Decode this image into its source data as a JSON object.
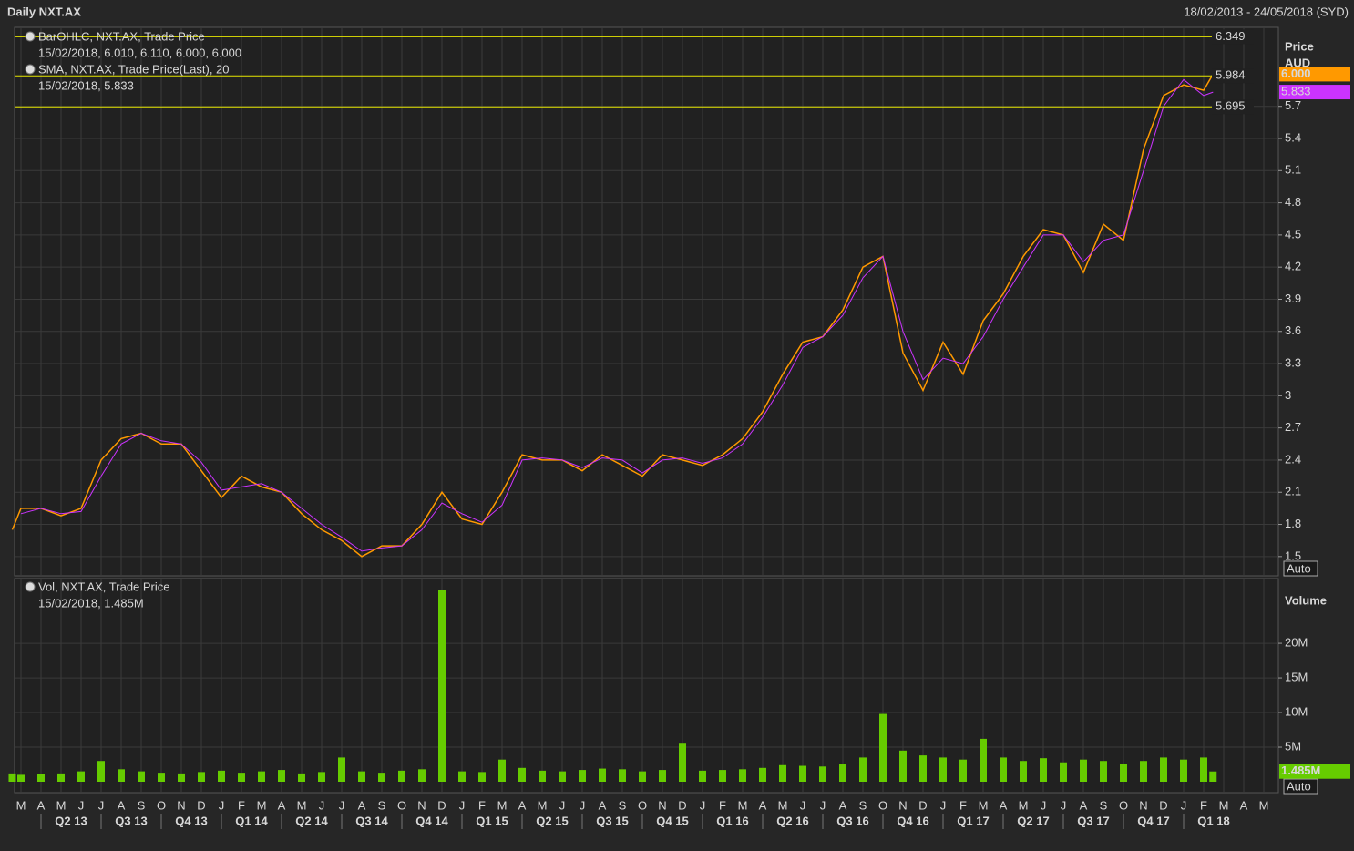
{
  "header": {
    "title": "Daily NXT.AX",
    "range": "18/02/2013 - 24/05/2018 (SYD)"
  },
  "chart_data": [
    {
      "type": "line",
      "axis_title": "Price",
      "axis_unit": "AUD",
      "scale_mode": "Auto",
      "x": [
        "18/02/2013",
        "01/03/2013",
        "01/04/2013",
        "01/05/2013",
        "01/06/2013",
        "01/07/2013",
        "01/08/2013",
        "01/09/2013",
        "01/10/2013",
        "01/11/2013",
        "01/12/2013",
        "01/01/2014",
        "01/02/2014",
        "01/03/2014",
        "01/04/2014",
        "01/05/2014",
        "01/06/2014",
        "01/07/2014",
        "01/08/2014",
        "01/09/2014",
        "01/10/2014",
        "01/11/2014",
        "01/12/2014",
        "01/01/2015",
        "01/02/2015",
        "01/03/2015",
        "01/04/2015",
        "01/05/2015",
        "01/06/2015",
        "01/07/2015",
        "01/08/2015",
        "01/09/2015",
        "01/10/2015",
        "01/11/2015",
        "01/12/2015",
        "01/01/2016",
        "01/02/2016",
        "01/03/2016",
        "01/04/2016",
        "01/05/2016",
        "01/06/2016",
        "01/07/2016",
        "01/08/2016",
        "01/09/2016",
        "01/10/2016",
        "01/11/2016",
        "01/12/2016",
        "01/01/2017",
        "01/02/2017",
        "01/03/2017",
        "01/04/2017",
        "01/05/2017",
        "01/06/2017",
        "01/07/2017",
        "01/08/2017",
        "01/09/2017",
        "01/10/2017",
        "01/11/2017",
        "01/12/2017",
        "01/01/2018",
        "01/02/2018",
        "15/02/2018"
      ],
      "series": [
        {
          "name": "BarOHLC, NXT.AX, Trade Price",
          "detail": "15/02/2018, 6.010, 6.110, 6.000, 6.000",
          "color": "#ff9900",
          "last": {
            "value": 6.0,
            "label": "6.000"
          },
          "values": [
            1.75,
            1.95,
            1.95,
            1.88,
            1.95,
            2.4,
            2.6,
            2.65,
            2.55,
            2.55,
            2.3,
            2.05,
            2.25,
            2.15,
            2.1,
            1.9,
            1.75,
            1.65,
            1.5,
            1.6,
            1.6,
            1.8,
            2.1,
            1.85,
            1.8,
            2.1,
            2.45,
            2.4,
            2.4,
            2.3,
            2.45,
            2.35,
            2.25,
            2.45,
            2.4,
            2.35,
            2.45,
            2.6,
            2.85,
            3.2,
            3.5,
            3.55,
            3.8,
            4.2,
            4.3,
            3.4,
            3.05,
            3.5,
            3.2,
            3.7,
            3.95,
            4.3,
            4.55,
            4.5,
            4.15,
            4.6,
            4.45,
            5.3,
            5.8,
            5.9,
            5.85,
            6.0
          ]
        },
        {
          "name": "SMA, NXT.AX, Trade Price(Last),  20",
          "detail": "15/02/2018, 5.833",
          "color": "#cc33ff",
          "last": 5.833,
          "values": [
            null,
            1.9,
            1.95,
            1.9,
            1.92,
            2.25,
            2.55,
            2.65,
            2.58,
            2.55,
            2.38,
            2.12,
            2.15,
            2.18,
            2.1,
            1.95,
            1.8,
            1.68,
            1.55,
            1.58,
            1.6,
            1.75,
            2.0,
            1.9,
            1.82,
            1.98,
            2.4,
            2.42,
            2.4,
            2.33,
            2.42,
            2.4,
            2.28,
            2.4,
            2.42,
            2.37,
            2.42,
            2.55,
            2.8,
            3.1,
            3.45,
            3.55,
            3.75,
            4.1,
            4.3,
            3.6,
            3.15,
            3.35,
            3.3,
            3.55,
            3.9,
            4.2,
            4.5,
            4.5,
            4.25,
            4.45,
            4.5,
            5.1,
            5.7,
            5.95,
            5.8,
            5.833
          ]
        }
      ],
      "reference_lines": [
        6.349,
        5.984,
        5.695
      ],
      "reference_color": "#e6e600",
      "ylim": [
        1.32,
        6.42
      ],
      "yticks": [
        1.5,
        1.8,
        2.1,
        2.4,
        2.7,
        3,
        3.3,
        3.6,
        3.9,
        4.2,
        4.5,
        4.8,
        5.1,
        5.4,
        5.7
      ],
      "grid": true
    },
    {
      "type": "bar",
      "axis_title": "Volume",
      "scale_mode": "Auto",
      "x": [
        "18/02/2013",
        "01/03/2013",
        "01/04/2013",
        "01/05/2013",
        "01/06/2013",
        "01/07/2013",
        "01/08/2013",
        "01/09/2013",
        "01/10/2013",
        "01/11/2013",
        "01/12/2013",
        "01/01/2014",
        "01/02/2014",
        "01/03/2014",
        "01/04/2014",
        "01/05/2014",
        "01/06/2014",
        "01/07/2014",
        "01/08/2014",
        "01/09/2014",
        "01/10/2014",
        "01/11/2014",
        "01/12/2014",
        "01/01/2015",
        "01/02/2015",
        "01/03/2015",
        "01/04/2015",
        "01/05/2015",
        "01/06/2015",
        "01/07/2015",
        "01/08/2015",
        "01/09/2015",
        "01/10/2015",
        "01/11/2015",
        "01/12/2015",
        "01/01/2016",
        "01/02/2016",
        "01/03/2016",
        "01/04/2016",
        "01/05/2016",
        "01/06/2016",
        "01/07/2016",
        "01/08/2016",
        "01/09/2016",
        "01/10/2016",
        "01/11/2016",
        "01/12/2016",
        "01/01/2017",
        "01/02/2017",
        "01/03/2017",
        "01/04/2017",
        "01/05/2017",
        "01/06/2017",
        "01/07/2017",
        "01/08/2017",
        "01/09/2017",
        "01/10/2017",
        "01/11/2017",
        "01/12/2017",
        "01/01/2018",
        "01/02/2018",
        "15/02/2018"
      ],
      "series": [
        {
          "name": "Vol, NXT.AX, Trade Price",
          "detail": "15/02/2018, 1.485M",
          "color": "#66cc00",
          "last": {
            "value": 1485000,
            "label": "1.485M"
          },
          "values": [
            1200000,
            1000000,
            1100000,
            1200000,
            1500000,
            3000000,
            1800000,
            1500000,
            1300000,
            1200000,
            1400000,
            1600000,
            1300000,
            1500000,
            1700000,
            1200000,
            1400000,
            3500000,
            1500000,
            1300000,
            1600000,
            1800000,
            27700000,
            1500000,
            1400000,
            3200000,
            2000000,
            1600000,
            1500000,
            1700000,
            1900000,
            1800000,
            1500000,
            1700000,
            5500000,
            1600000,
            1700000,
            1800000,
            2000000,
            2400000,
            2300000,
            2200000,
            2500000,
            3500000,
            9800000,
            4500000,
            3800000,
            3500000,
            3200000,
            6200000,
            3500000,
            3000000,
            3400000,
            2800000,
            3200000,
            3000000,
            2600000,
            3000000,
            3500000,
            3200000,
            3500000,
            1485000
          ]
        }
      ],
      "ylim": [
        0,
        28700000
      ],
      "yticks": [
        {
          "value": 5000000,
          "label": "5M"
        },
        {
          "value": 10000000,
          "label": "10M"
        },
        {
          "value": 15000000,
          "label": "15M"
        },
        {
          "value": 20000000,
          "label": "20M"
        }
      ],
      "grid": true,
      "month_labels": [
        "M",
        "A",
        "M",
        "J",
        "J",
        "A",
        "S",
        "O",
        "N",
        "D",
        "J",
        "F",
        "M",
        "A",
        "M",
        "J",
        "J",
        "A",
        "S",
        "O",
        "N",
        "D",
        "J",
        "F",
        "M",
        "A",
        "M",
        "J",
        "J",
        "A",
        "S",
        "O",
        "N",
        "D",
        "J",
        "F",
        "M",
        "A",
        "M",
        "J",
        "J",
        "A",
        "S",
        "O",
        "N",
        "D",
        "J",
        "F",
        "M",
        "A",
        "M",
        "J",
        "J",
        "A",
        "S",
        "O",
        "N",
        "D",
        "J",
        "F",
        "M",
        "A",
        "M"
      ],
      "quarter_labels": [
        "Q2 13",
        "Q3 13",
        "Q4 13",
        "Q1 14",
        "Q2 14",
        "Q3 14",
        "Q4 14",
        "Q1 15",
        "Q2 15",
        "Q3 15",
        "Q4 15",
        "Q1 16",
        "Q2 16",
        "Q3 16",
        "Q4 16",
        "Q1 17",
        "Q2 17",
        "Q3 17",
        "Q4 17",
        "Q1 18"
      ]
    }
  ]
}
